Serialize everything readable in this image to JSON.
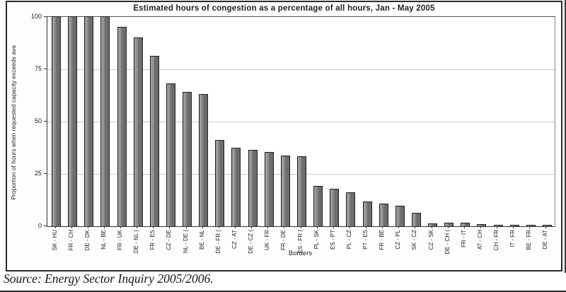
{
  "chart_data": {
    "type": "bar",
    "title": "Estimated hours of congestion as a percentage of all hours, Jan - May 2005",
    "xlabel": "Borders",
    "ylabel": "Proportion of hours when requested capacity exceeds ava",
    "ylim": [
      0,
      100
    ],
    "yticks": [
      0,
      25,
      50,
      75,
      100
    ],
    "grid": true,
    "legend": "none",
    "bar_color": "#6e6e6e",
    "bar_border_color": "#1f1f1f",
    "categories": [
      "SK - HU",
      "FR - CH",
      "DE - DK",
      "NL - BE",
      "FR - UK",
      "DE - NL (",
      "FR - ES",
      "CZ - DE",
      "NL - DE (",
      "BE - NL",
      "DE - FR (",
      "CZ - AT",
      "DE - CZ (",
      "UK - FR",
      "FR - DE",
      "ES - FR (",
      "PL - SK",
      "ES - PT",
      "PL - CZ",
      "PT - ES",
      "FR - BE",
      "CZ - PL",
      "SK - CZ",
      "CZ - SK",
      "DE - CH (",
      "FR - IT",
      "AT - CH",
      "CH - FR",
      "IT - FR",
      "BE - FR",
      "DE - AT"
    ],
    "values": [
      100,
      100,
      100,
      100,
      95,
      90,
      81,
      68,
      64,
      63,
      41,
      37,
      36,
      35,
      33.5,
      33,
      19,
      17.5,
      16,
      11.5,
      10.5,
      9.5,
      6,
      1,
      1.5,
      1.2,
      0.8,
      0.3,
      0.3,
      0.3,
      0.3
    ]
  },
  "source_note": "Source: Energy Sector Inquiry 2005/2006."
}
